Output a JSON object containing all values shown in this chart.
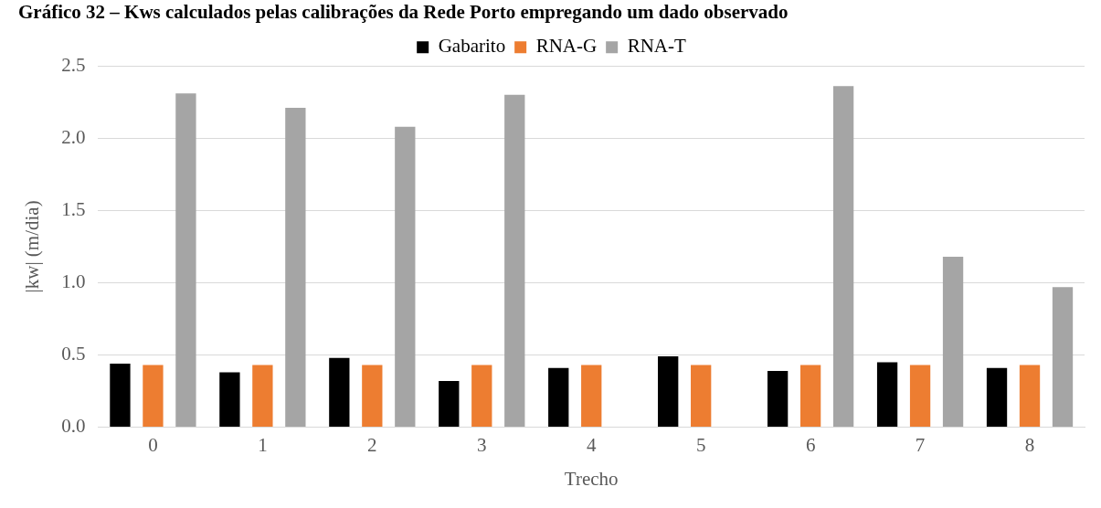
{
  "chart_data": {
    "type": "bar",
    "title": "Gráfico 32 – Kws calculados pelas calibrações da Rede Porto empregando um dado observado",
    "xlabel": "Trecho",
    "ylabel": "|kw| (m/dia)",
    "categories": [
      "0",
      "1",
      "2",
      "3",
      "4",
      "5",
      "6",
      "7",
      "8"
    ],
    "series": [
      {
        "name": "Gabarito",
        "color": "#000000",
        "values": [
          0.44,
          0.38,
          0.48,
          0.32,
          0.41,
          0.49,
          0.39,
          0.45,
          0.41
        ]
      },
      {
        "name": "RNA-G",
        "color": "#ed7d31",
        "values": [
          0.43,
          0.43,
          0.43,
          0.43,
          0.43,
          0.43,
          0.43,
          0.43,
          0.43
        ]
      },
      {
        "name": "RNA-T",
        "color": "#a5a5a5",
        "values": [
          2.31,
          2.21,
          2.08,
          2.3,
          null,
          null,
          2.36,
          1.18,
          0.97
        ]
      }
    ],
    "ylim": [
      0,
      2.5
    ],
    "yticks": [
      {
        "value": 0,
        "label": "0.0"
      },
      0.5,
      {
        "value": 1,
        "label": "1.0"
      },
      1.5,
      {
        "value": 2,
        "label": "2.0"
      },
      2.5
    ],
    "grid": "y",
    "legend": "top"
  }
}
